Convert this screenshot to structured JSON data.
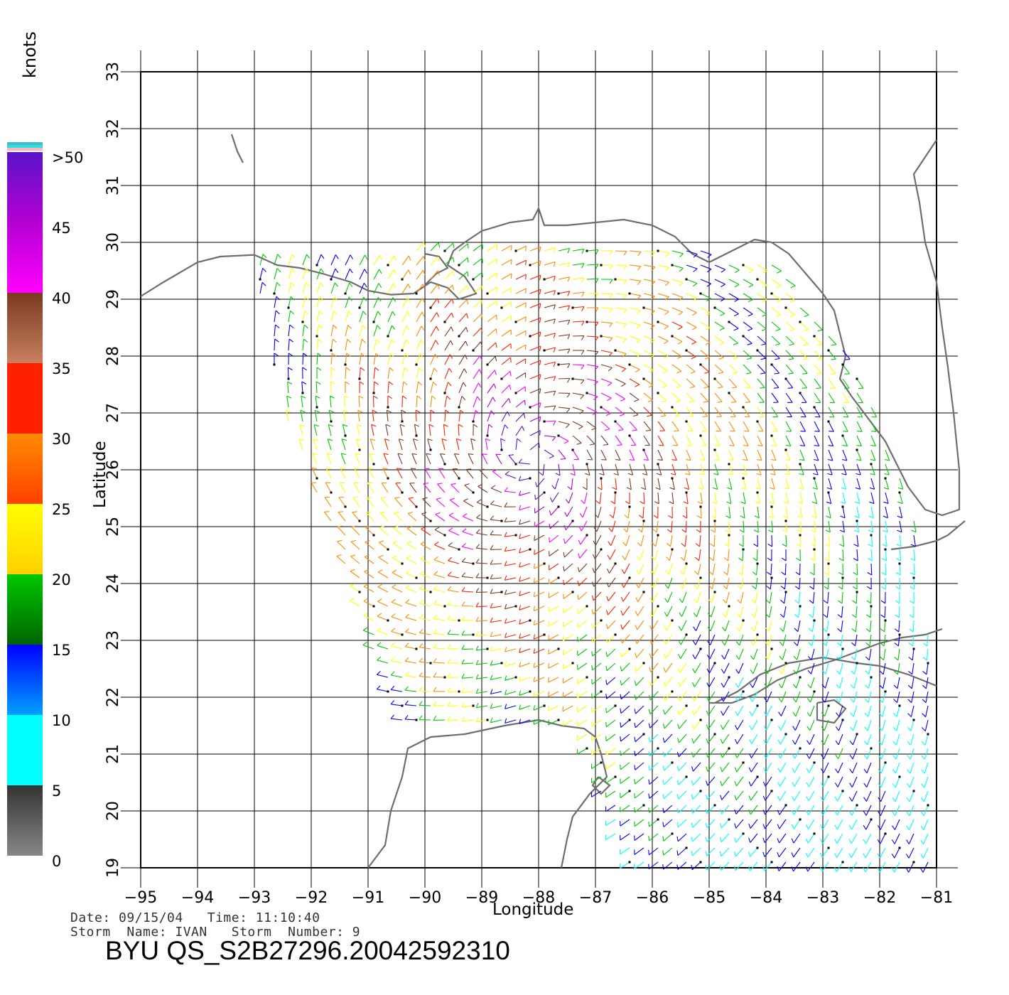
{
  "map": {
    "xlabel": "Longitude",
    "ylabel": "Latitude",
    "lon_ticks": [
      "−95",
      "−94",
      "−93",
      "−92",
      "−91",
      "−90",
      "−89",
      "−88",
      "−87",
      "−86",
      "−85",
      "−84",
      "−83",
      "−82",
      "−81"
    ],
    "lat_ticks": [
      "19",
      "20",
      "21",
      "22",
      "23",
      "24",
      "25",
      "26",
      "27",
      "28",
      "29",
      "30",
      "31",
      "32",
      "33"
    ],
    "lon_range": [
      -95,
      -81
    ],
    "lat_range": [
      19,
      33
    ],
    "grid": true,
    "storm_center": {
      "lon": -88.1,
      "lat": 26.2
    }
  },
  "colorbar": {
    "title": "knots",
    "labels": [
      ">50",
      "45",
      "40",
      "35",
      "30",
      "25",
      "20",
      "15",
      "10",
      "5",
      "0"
    ],
    "colors": {
      "over_50": "#5a14c8",
      "45": "#b400d2",
      "40": "#ff00ff",
      "35": "#7a3a20",
      "30": "#ff2000",
      "25": "#ff8c00",
      "20": "#ffff00",
      "15": "#00c800",
      "10": "#0000ff",
      "5": "#00ffff",
      "0": "#555555"
    }
  },
  "footer": {
    "date_line": "Date: 09/15/04   Time: 11:10:40",
    "storm_line": "Storm  Name: IVAN   Storm  Number: 9",
    "title": "BYU  QS_S2B27296.20042592310"
  },
  "colors": {
    "coastline": "#6e6e6e",
    "grid": "#000000"
  }
}
